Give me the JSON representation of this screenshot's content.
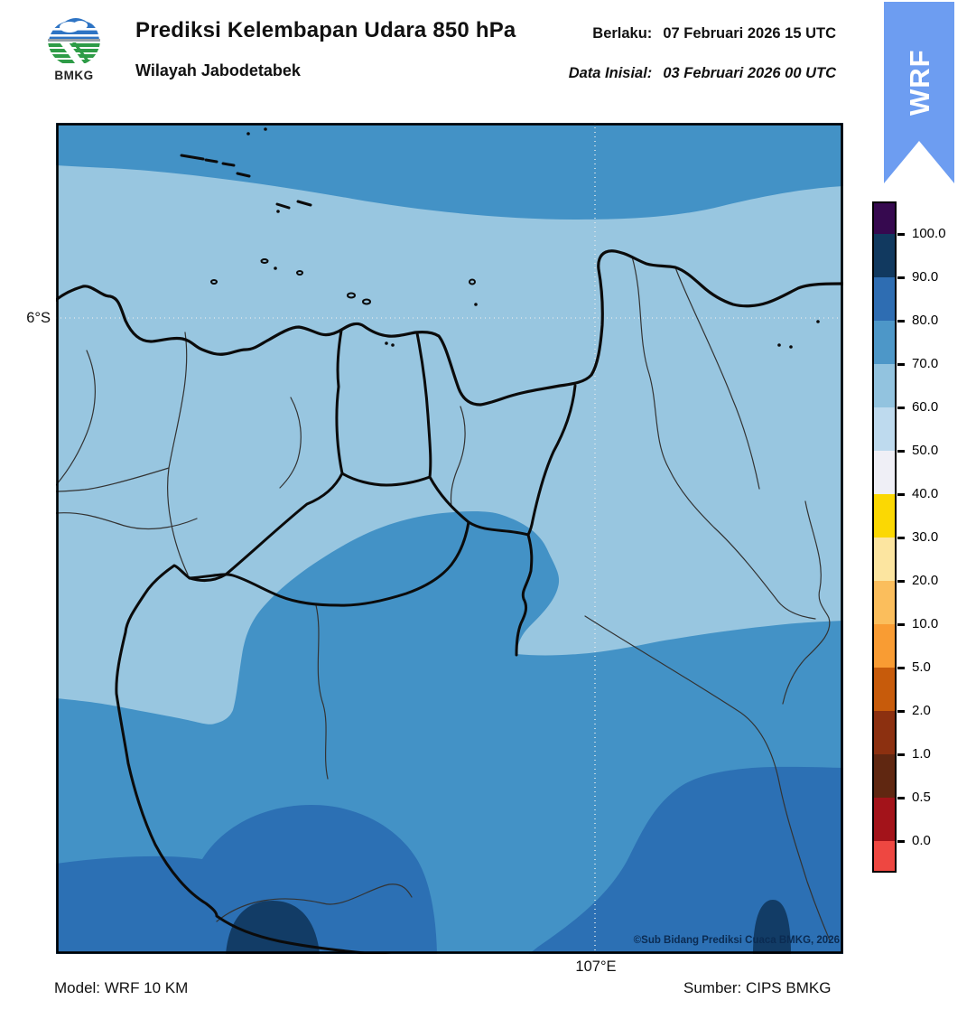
{
  "header": {
    "logo_text": "BMKG",
    "title": "Prediksi Kelembapan Udara 850 hPa",
    "subtitle": "Wilayah Jabodetabek",
    "valid_label": "Berlaku:",
    "valid_value": "07 Februari 2026 15 UTC",
    "initial_label": "Data Inisial:",
    "initial_value": "03 Februari 2026 00 UTC"
  },
  "ribbon": {
    "label": "WRF",
    "color": "#6D9DF1"
  },
  "map": {
    "lat_label": "6°S",
    "lon_label": "107°E",
    "copyright": "©Sub Bidang Prediksi Cuaca BMKG, 2026",
    "palette": {
      "rh_60_70": "#98C6E0",
      "rh_70_80": "#4392C6",
      "rh_80_90": "#2C70B4",
      "rh_90_100": "#123C66",
      "coast": "#0B0B0B",
      "district": "#333333",
      "grid": "#DCE6EC"
    }
  },
  "colorbar": {
    "ticks": [
      "100.0",
      "90.0",
      "80.0",
      "70.0",
      "60.0",
      "50.0",
      "40.0",
      "30.0",
      "20.0",
      "10.0",
      "5.0",
      "2.0",
      "1.0",
      "0.5",
      "0.0"
    ],
    "band_colors": [
      "#36094F",
      "#11395F",
      "#2E6DB2",
      "#4D97C8",
      "#92C3DF",
      "#BEDAEE",
      "#EFEFF6",
      "#FBD803",
      "#FCE5A0",
      "#FBBE5C",
      "#F99C33",
      "#C75B0B",
      "#8C3010",
      "#602711",
      "#A3131A",
      "#EE4741"
    ]
  },
  "footer": {
    "model": "Model: WRF 10 KM",
    "source": "Sumber: CIPS BMKG"
  }
}
